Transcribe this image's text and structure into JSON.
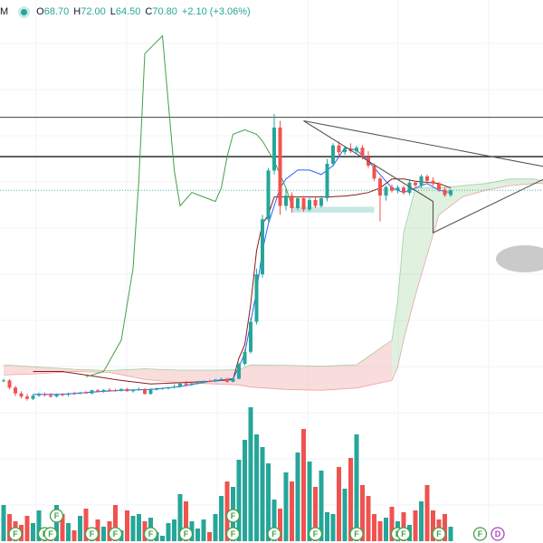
{
  "header": {
    "symbol_fragment": "M",
    "open_label": "O",
    "open": "68.70",
    "high_label": "H",
    "high": "72.00",
    "low_label": "L",
    "low": "64.50",
    "close_label": "C",
    "close": "70.80",
    "change": "+2.10 (+3.06%)"
  },
  "colors": {
    "up": "#26a69a",
    "down": "#ef5350",
    "up_volume": "#26a69a",
    "down_volume": "#ef5350",
    "lagging_span": "#43a047",
    "base_line": "#8b1a1a",
    "conversion_line": "#2962ff",
    "cloud_bull": "#a5d6a7",
    "cloud_bear": "#ef9a9a",
    "triangle": "#555555",
    "level_line": "#000000"
  },
  "chart_data": {
    "type": "candlestick",
    "title": "",
    "xlabel": "",
    "ylabel": "",
    "ylim": [
      18,
      110
    ],
    "grid": true,
    "levels": [
      83.8,
      75.0
    ],
    "triangle": [
      [
        51,
        83.0
      ],
      [
        95,
        72.0
      ],
      [
        73,
        58.0
      ],
      [
        73,
        65.0
      ]
    ],
    "demand_zone": {
      "x0": 49,
      "x1": 63,
      "y0": 62.5,
      "y1": 63.8
    },
    "candles": [
      [
        24.8,
        25.4,
        24.6,
        25.0
      ],
      [
        25.0,
        25.3,
        23.0,
        23.4
      ],
      [
        23.4,
        23.8,
        21.5,
        22.1
      ],
      [
        22.1,
        22.6,
        21.0,
        21.4
      ],
      [
        21.4,
        22.0,
        20.5,
        20.9
      ],
      [
        20.9,
        21.9,
        20.6,
        21.6
      ],
      [
        21.6,
        22.3,
        21.3,
        21.9
      ],
      [
        21.9,
        22.3,
        21.4,
        21.7
      ],
      [
        21.7,
        22.2,
        21.1,
        21.4
      ],
      [
        21.4,
        22.1,
        21.2,
        21.9
      ],
      [
        21.9,
        22.2,
        21.5,
        21.8
      ],
      [
        21.8,
        22.3,
        21.4,
        22.1
      ],
      [
        22.1,
        22.5,
        21.8,
        22.0
      ],
      [
        22.0,
        22.4,
        21.9,
        22.3
      ],
      [
        22.3,
        22.6,
        22.0,
        22.1
      ],
      [
        22.1,
        22.9,
        21.9,
        22.8
      ],
      [
        22.8,
        23.1,
        22.4,
        22.5
      ],
      [
        22.5,
        23.0,
        22.3,
        22.9
      ],
      [
        22.9,
        23.3,
        22.6,
        22.8
      ],
      [
        22.8,
        23.1,
        22.5,
        22.7
      ],
      [
        22.7,
        23.2,
        22.5,
        23.1
      ],
      [
        23.1,
        23.3,
        22.5,
        22.6
      ],
      [
        22.6,
        23.0,
        22.3,
        22.9
      ],
      [
        22.9,
        23.4,
        22.7,
        23.0
      ],
      [
        23.0,
        23.3,
        21.8,
        22.0
      ],
      [
        22.0,
        23.2,
        21.8,
        23.1
      ],
      [
        23.1,
        23.4,
        22.8,
        23.1
      ],
      [
        23.1,
        23.4,
        22.9,
        23.3
      ],
      [
        23.3,
        23.6,
        23.0,
        23.4
      ],
      [
        23.4,
        24.1,
        23.2,
        23.6
      ],
      [
        23.6,
        24.5,
        23.4,
        24.3
      ],
      [
        24.3,
        24.9,
        23.7,
        24.0
      ],
      [
        24.0,
        24.4,
        23.8,
        24.3
      ],
      [
        24.3,
        24.9,
        24.1,
        24.5
      ],
      [
        24.5,
        25.0,
        24.3,
        24.9
      ],
      [
        24.9,
        25.1,
        24.6,
        24.8
      ],
      [
        24.8,
        25.3,
        24.6,
        25.2
      ],
      [
        25.2,
        25.6,
        24.9,
        25.3
      ],
      [
        25.3,
        25.6,
        24.5,
        24.7
      ],
      [
        24.7,
        25.7,
        24.6,
        25.4
      ],
      [
        25.4,
        29.0,
        25.2,
        28.7
      ],
      [
        28.7,
        32.0,
        28.3,
        31.4
      ],
      [
        31.4,
        39.0,
        31.0,
        38.1
      ],
      [
        38.1,
        50.0,
        37.5,
        48.7
      ],
      [
        48.7,
        62.0,
        48.0,
        61.0
      ],
      [
        61.0,
        72.5,
        60.5,
        71.9
      ],
      [
        71.9,
        84.5,
        71.0,
        81.5
      ],
      [
        81.5,
        83.0,
        62.0,
        64.0
      ],
      [
        64.0,
        68.0,
        63.0,
        66.3
      ],
      [
        66.3,
        67.0,
        62.5,
        63.5
      ],
      [
        63.5,
        66.0,
        63.0,
        65.7
      ],
      [
        65.7,
        66.2,
        62.7,
        63.2
      ],
      [
        63.2,
        65.8,
        62.8,
        65.3
      ],
      [
        65.3,
        66.0,
        63.5,
        64.0
      ],
      [
        64.0,
        66.3,
        63.6,
        65.7
      ],
      [
        65.7,
        74.5,
        65.0,
        73.4
      ],
      [
        73.4,
        78.0,
        72.8,
        77.5
      ],
      [
        77.5,
        78.4,
        75.0,
        76.0
      ],
      [
        76.0,
        77.4,
        75.4,
        76.8
      ],
      [
        76.8,
        78.0,
        75.8,
        76.2
      ],
      [
        76.2,
        77.5,
        75.7,
        77.0
      ],
      [
        77.0,
        77.6,
        74.4,
        74.9
      ],
      [
        74.9,
        76.2,
        72.5,
        73.0
      ],
      [
        73.0,
        73.5,
        69.6,
        70.1
      ],
      [
        70.1,
        70.5,
        60.5,
        66.3
      ],
      [
        66.3,
        68.5,
        65.2,
        68.2
      ],
      [
        68.2,
        68.8,
        67.0,
        67.4
      ],
      [
        67.4,
        68.6,
        66.8,
        68.1
      ],
      [
        68.1,
        68.5,
        66.5,
        66.9
      ],
      [
        66.9,
        70.0,
        66.4,
        69.2
      ],
      [
        69.2,
        69.6,
        68.2,
        68.6
      ],
      [
        68.6,
        71.0,
        68.0,
        70.6
      ],
      [
        70.6,
        71.0,
        69.2,
        69.6
      ],
      [
        69.6,
        70.4,
        68.5,
        69.0
      ],
      [
        69.0,
        69.3,
        67.1,
        67.6
      ],
      [
        67.6,
        68.1,
        66.0,
        66.4
      ],
      [
        66.4,
        67.8,
        66.0,
        67.5
      ]
    ],
    "lagging_span": [
      {
        "i": 14,
        "v": 25.8
      },
      {
        "i": 17,
        "v": 27
      },
      {
        "i": 20,
        "v": 34
      },
      {
        "i": 22,
        "v": 50
      },
      {
        "i": 23,
        "v": 70
      },
      {
        "i": 24,
        "v": 98
      },
      {
        "i": 27,
        "v": 102
      },
      {
        "i": 29,
        "v": 72
      },
      {
        "i": 30,
        "v": 64
      },
      {
        "i": 32,
        "v": 67
      },
      {
        "i": 34,
        "v": 66
      },
      {
        "i": 36,
        "v": 65
      },
      {
        "i": 37,
        "v": 68
      },
      {
        "i": 38,
        "v": 75
      },
      {
        "i": 39,
        "v": 80
      },
      {
        "i": 41,
        "v": 81
      },
      {
        "i": 43,
        "v": 80
      },
      {
        "i": 44,
        "v": 78.5
      },
      {
        "i": 46,
        "v": 74
      },
      {
        "i": 48,
        "v": 68
      },
      {
        "i": 49,
        "v": 64
      }
    ],
    "conversion_line": [
      {
        "i": 5,
        "v": 21.9
      },
      {
        "i": 10,
        "v": 21.9
      },
      {
        "i": 15,
        "v": 22.4
      },
      {
        "i": 20,
        "v": 22.8
      },
      {
        "i": 25,
        "v": 23
      },
      {
        "i": 30,
        "v": 23.6
      },
      {
        "i": 35,
        "v": 24.8
      },
      {
        "i": 39,
        "v": 25.4
      },
      {
        "i": 40,
        "v": 28
      },
      {
        "i": 41,
        "v": 31
      },
      {
        "i": 42,
        "v": 38
      },
      {
        "i": 43,
        "v": 45
      },
      {
        "i": 44,
        "v": 54
      },
      {
        "i": 45,
        "v": 60
      },
      {
        "i": 46,
        "v": 64
      },
      {
        "i": 47,
        "v": 68
      },
      {
        "i": 48,
        "v": 70
      },
      {
        "i": 50,
        "v": 72
      },
      {
        "i": 52,
        "v": 72
      },
      {
        "i": 54,
        "v": 71
      },
      {
        "i": 56,
        "v": 73
      },
      {
        "i": 58,
        "v": 77
      },
      {
        "i": 60,
        "v": 76.5
      },
      {
        "i": 62,
        "v": 74
      },
      {
        "i": 64,
        "v": 71
      },
      {
        "i": 66,
        "v": 68
      },
      {
        "i": 68,
        "v": 67
      },
      {
        "i": 70,
        "v": 68
      },
      {
        "i": 72,
        "v": 69
      },
      {
        "i": 74,
        "v": 67.5
      },
      {
        "i": 76,
        "v": 67
      }
    ],
    "base_line": [
      {
        "i": 5,
        "v": 27
      },
      {
        "i": 10,
        "v": 27
      },
      {
        "i": 15,
        "v": 26
      },
      {
        "i": 20,
        "v": 25
      },
      {
        "i": 25,
        "v": 24.2
      },
      {
        "i": 30,
        "v": 24.5
      },
      {
        "i": 35,
        "v": 24.8
      },
      {
        "i": 39,
        "v": 25.2
      },
      {
        "i": 40,
        "v": 30
      },
      {
        "i": 41,
        "v": 33
      },
      {
        "i": 42,
        "v": 42
      },
      {
        "i": 43,
        "v": 54
      },
      {
        "i": 44,
        "v": 60
      },
      {
        "i": 45,
        "v": 62
      },
      {
        "i": 46,
        "v": 66
      },
      {
        "i": 50,
        "v": 66
      },
      {
        "i": 55,
        "v": 66
      },
      {
        "i": 58,
        "v": 66.2
      },
      {
        "i": 60,
        "v": 66.5
      },
      {
        "i": 62,
        "v": 67
      },
      {
        "i": 64,
        "v": 68
      },
      {
        "i": 66,
        "v": 70
      },
      {
        "i": 68,
        "v": 70
      },
      {
        "i": 70,
        "v": 69.5
      },
      {
        "i": 74,
        "v": 69
      },
      {
        "i": 76,
        "v": 68
      }
    ],
    "cloud": {
      "upper": [
        {
          "i": 0,
          "v": 28.5
        },
        {
          "i": 6,
          "v": 28
        },
        {
          "i": 12,
          "v": 27.5
        },
        {
          "i": 18,
          "v": 27.2
        },
        {
          "i": 24,
          "v": 27.6
        },
        {
          "i": 30,
          "v": 27.3
        },
        {
          "i": 36,
          "v": 27.3
        },
        {
          "i": 40,
          "v": 27.4
        },
        {
          "i": 42,
          "v": 28.5
        },
        {
          "i": 48,
          "v": 28.4
        },
        {
          "i": 54,
          "v": 28.2
        },
        {
          "i": 60,
          "v": 28.5
        },
        {
          "i": 66,
          "v": 34
        },
        {
          "i": 67,
          "v": 43
        },
        {
          "i": 68,
          "v": 58
        },
        {
          "i": 70,
          "v": 68
        },
        {
          "i": 74,
          "v": 68
        },
        {
          "i": 78,
          "v": 68.5
        },
        {
          "i": 82,
          "v": 69
        },
        {
          "i": 86,
          "v": 70
        },
        {
          "i": 90,
          "v": 70
        },
        {
          "i": 95,
          "v": 68.8
        }
      ],
      "lower": [
        {
          "i": 0,
          "v": 26.2
        },
        {
          "i": 6,
          "v": 26.5
        },
        {
          "i": 12,
          "v": 27.0
        },
        {
          "i": 18,
          "v": 26.8
        },
        {
          "i": 24,
          "v": 25.2
        },
        {
          "i": 30,
          "v": 24.5
        },
        {
          "i": 36,
          "v": 24.2
        },
        {
          "i": 40,
          "v": 24.0
        },
        {
          "i": 42,
          "v": 23.5
        },
        {
          "i": 48,
          "v": 23.0
        },
        {
          "i": 54,
          "v": 22.8
        },
        {
          "i": 60,
          "v": 23.3
        },
        {
          "i": 66,
          "v": 25.0
        },
        {
          "i": 67,
          "v": 28
        },
        {
          "i": 68,
          "v": 34
        },
        {
          "i": 70,
          "v": 44
        },
        {
          "i": 74,
          "v": 62
        },
        {
          "i": 78,
          "v": 66
        },
        {
          "i": 82,
          "v": 67.5
        },
        {
          "i": 86,
          "v": 68.5
        },
        {
          "i": 90,
          "v": 69
        },
        {
          "i": 95,
          "v": 69.3
        }
      ]
    },
    "volume": [
      40,
      30,
      22,
      18,
      28,
      20,
      34,
      10,
      14,
      40,
      30,
      20,
      12,
      28,
      36,
      8,
      24,
      16,
      22,
      40,
      12,
      34,
      28,
      30,
      22,
      26,
      10,
      6,
      20,
      24,
      52,
      44,
      22,
      14,
      24,
      10,
      30,
      50,
      66,
      60,
      90,
      112,
      148,
      118,
      104,
      86,
      46,
      36,
      76,
      66,
      98,
      124,
      88,
      60,
      78,
      32,
      30,
      82,
      58,
      92,
      118,
      62,
      50,
      30,
      22,
      26,
      38,
      22,
      32,
      18,
      34,
      44,
      62,
      34,
      24,
      30,
      16
    ],
    "volume_max": 150,
    "events": [
      {
        "i": 2,
        "y": 0,
        "label": "F",
        "type": "up"
      },
      {
        "i": 7,
        "y": 0,
        "label": "F",
        "type": "up"
      },
      {
        "i": 8,
        "y": 0,
        "label": "F",
        "type": "up"
      },
      {
        "i": 9,
        "y": 1,
        "label": "F",
        "type": "up"
      },
      {
        "i": 15,
        "y": 0,
        "label": "F",
        "type": "up"
      },
      {
        "i": 19,
        "y": 0,
        "label": "F",
        "type": "up"
      },
      {
        "i": 25,
        "y": 0,
        "label": "F",
        "type": "up"
      },
      {
        "i": 31,
        "y": 0,
        "label": "F",
        "type": "up"
      },
      {
        "i": 39,
        "y": 0,
        "label": "F",
        "type": "up"
      },
      {
        "i": 39,
        "y": 1,
        "label": "F",
        "type": "up"
      },
      {
        "i": 46,
        "y": 0,
        "label": "F",
        "type": "up"
      },
      {
        "i": 53,
        "y": 0,
        "label": "F",
        "type": "up"
      },
      {
        "i": 60,
        "y": 0,
        "label": "F",
        "type": "up"
      },
      {
        "i": 67,
        "y": 0,
        "label": "F",
        "type": "up"
      },
      {
        "i": 68,
        "y": 0,
        "label": "F",
        "type": "up"
      },
      {
        "i": 74,
        "y": 0,
        "label": "F",
        "type": "up"
      },
      {
        "i": 81,
        "y": 0,
        "label": "F",
        "type": "up"
      },
      {
        "i": 84,
        "y": 0,
        "label": "D",
        "type": "div"
      }
    ]
  }
}
